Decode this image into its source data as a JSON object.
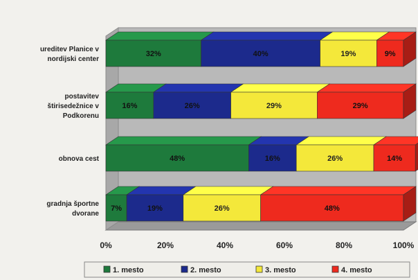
{
  "chart_data": {
    "type": "bar",
    "orientation": "horizontal",
    "stacked": true,
    "percent_stacked": true,
    "style": "3d",
    "title": "",
    "categories": [
      [
        "ureditev Planice v",
        "nordijski center"
      ],
      [
        "postavitev",
        "štirisedežnice v",
        "Podkorenu"
      ],
      [
        "obnova cest"
      ],
      [
        "gradnja športne",
        "dvorane"
      ]
    ],
    "series": [
      {
        "name": "1. mesto",
        "color": "#1e7a3c",
        "values": [
          32,
          16,
          48,
          7
        ]
      },
      {
        "name": "2. mesto",
        "color": "#1c2a8c",
        "values": [
          40,
          26,
          16,
          19
        ]
      },
      {
        "name": "3. mesto",
        "color": "#f4e83a",
        "values": [
          19,
          29,
          26,
          26
        ]
      },
      {
        "name": "4. mesto",
        "color": "#ee2a1e",
        "values": [
          9,
          29,
          14,
          48
        ]
      }
    ],
    "xlim": [
      0,
      100
    ],
    "x_ticks": [
      "0%",
      "20%",
      "40%",
      "60%",
      "80%",
      "100%"
    ],
    "grid": false,
    "legend_position": "bottom"
  }
}
